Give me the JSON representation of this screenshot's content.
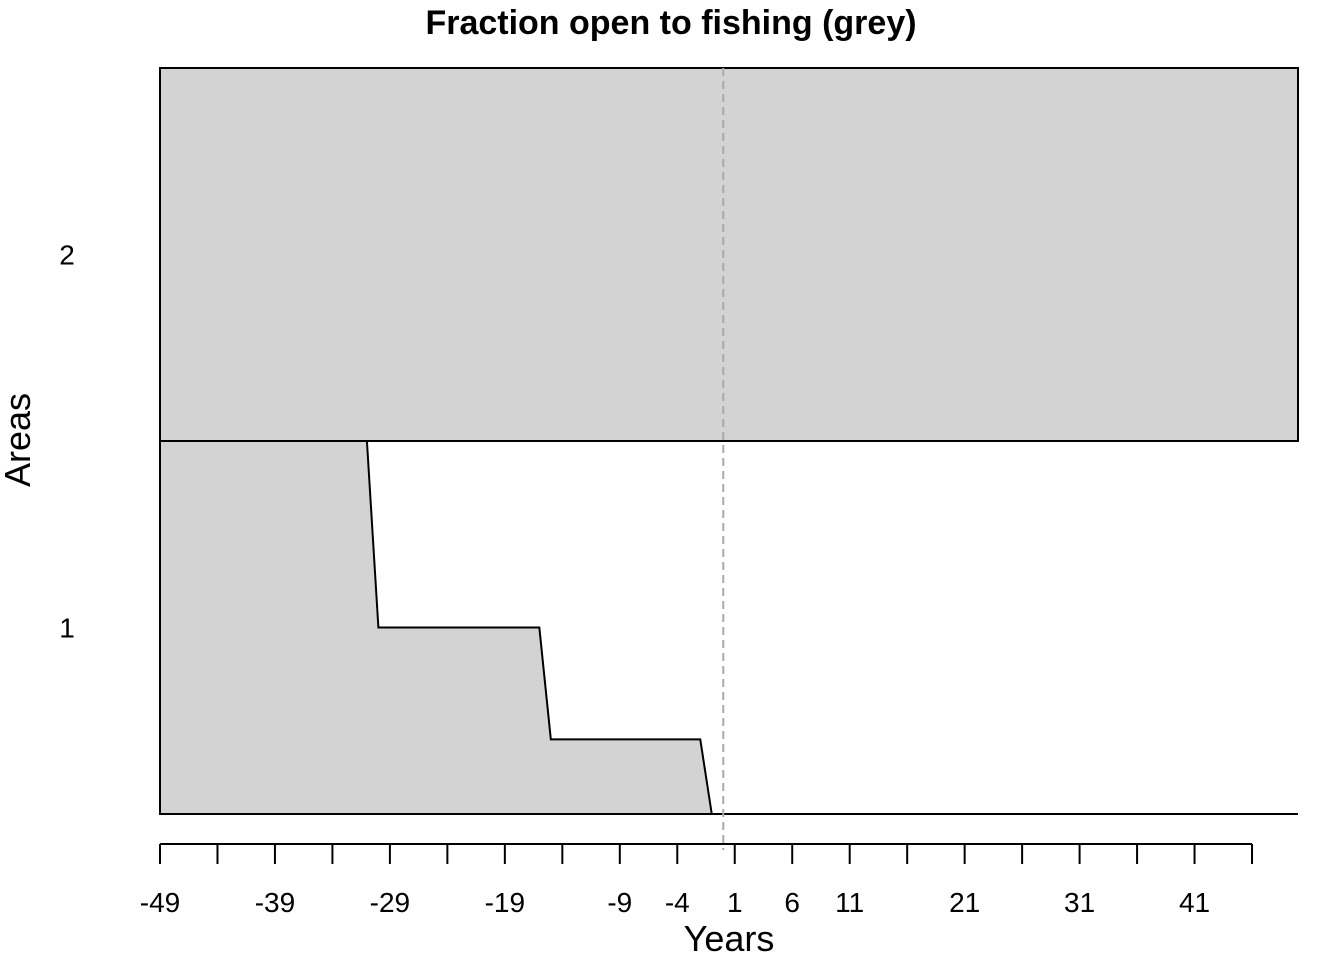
{
  "chart_data": {
    "type": "area",
    "title": "Fraction open to fishing (grey)",
    "xlabel": "Years",
    "ylabel": "Areas",
    "xlim": [
      -49,
      50
    ],
    "x_ticks": [
      -49,
      -44,
      -39,
      -34,
      -29,
      -24,
      -19,
      -14,
      -9,
      -4,
      1,
      6,
      11,
      16,
      21,
      26,
      31,
      36,
      41,
      46
    ],
    "x_tick_labels": [
      "-49",
      "-39",
      "-29",
      "-19",
      "-9",
      "-4",
      "1",
      "6",
      "11",
      "21",
      "31",
      "41"
    ],
    "x_tick_label_values": [
      -49,
      -39,
      -29,
      -19,
      -9,
      -4,
      1,
      6,
      11,
      21,
      31,
      41
    ],
    "y_categories": [
      "1",
      "2"
    ],
    "reference_line": {
      "x": 0,
      "style": "dashed",
      "color": "#aaaaaa"
    },
    "fill_color": "#d3d3d3",
    "series": [
      {
        "name": "1",
        "points": [
          [
            -49,
            1.0
          ],
          [
            -31,
            1.0
          ],
          [
            -30,
            0.5
          ],
          [
            -16,
            0.5
          ],
          [
            -15,
            0.2
          ],
          [
            -2,
            0.2
          ],
          [
            -1,
            0.0
          ],
          [
            50,
            0.0
          ]
        ]
      },
      {
        "name": "2",
        "points": [
          [
            -49,
            1.0
          ],
          [
            50,
            1.0
          ]
        ]
      }
    ]
  }
}
